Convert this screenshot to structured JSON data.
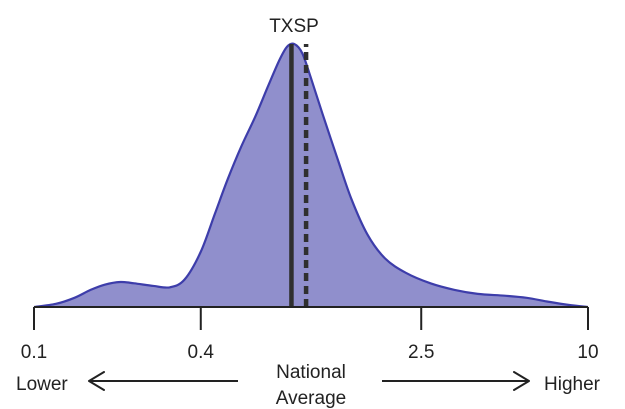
{
  "chart_data": {
    "type": "area",
    "title": "",
    "marker_label": "TXSP",
    "x_scale": "log",
    "xlim": [
      0.1,
      10
    ],
    "ticks": [
      0.1,
      0.4,
      2.5,
      10
    ],
    "tick_labels": [
      "0.1",
      "0.4",
      "2.5",
      "10"
    ],
    "y_scale": "relative density",
    "ylim": [
      0,
      1
    ],
    "density": [
      {
        "x": 0.1,
        "y": 0.0
      },
      {
        "x": 0.12,
        "y": 0.012
      },
      {
        "x": 0.14,
        "y": 0.035
      },
      {
        "x": 0.16,
        "y": 0.065
      },
      {
        "x": 0.18,
        "y": 0.085
      },
      {
        "x": 0.205,
        "y": 0.095
      },
      {
        "x": 0.23,
        "y": 0.09
      },
      {
        "x": 0.27,
        "y": 0.08
      },
      {
        "x": 0.31,
        "y": 0.075
      },
      {
        "x": 0.35,
        "y": 0.105
      },
      {
        "x": 0.4,
        "y": 0.21
      },
      {
        "x": 0.45,
        "y": 0.355
      },
      {
        "x": 0.5,
        "y": 0.485
      },
      {
        "x": 0.56,
        "y": 0.61
      },
      {
        "x": 0.63,
        "y": 0.725
      },
      {
        "x": 0.7,
        "y": 0.84
      },
      {
        "x": 0.77,
        "y": 0.94
      },
      {
        "x": 0.82,
        "y": 0.99
      },
      {
        "x": 0.87,
        "y": 1.0
      },
      {
        "x": 0.93,
        "y": 0.965
      },
      {
        "x": 1.0,
        "y": 0.87
      },
      {
        "x": 1.1,
        "y": 0.735
      },
      {
        "x": 1.25,
        "y": 0.56
      },
      {
        "x": 1.4,
        "y": 0.41
      },
      {
        "x": 1.6,
        "y": 0.275
      },
      {
        "x": 1.85,
        "y": 0.185
      },
      {
        "x": 2.2,
        "y": 0.13
      },
      {
        "x": 2.7,
        "y": 0.09
      },
      {
        "x": 3.3,
        "y": 0.065
      },
      {
        "x": 4.0,
        "y": 0.05
      },
      {
        "x": 5.0,
        "y": 0.043
      },
      {
        "x": 6.0,
        "y": 0.035
      },
      {
        "x": 7.2,
        "y": 0.02
      },
      {
        "x": 8.5,
        "y": 0.008
      },
      {
        "x": 10.0,
        "y": 0.0
      }
    ],
    "reference_lines": [
      {
        "x": 0.85,
        "style": "solid"
      },
      {
        "x": 0.96,
        "style": "dashed"
      }
    ],
    "lower_label": "Lower",
    "higher_label": "Higher",
    "center_label_line1": "National",
    "center_label_line2": "Average",
    "fill_color": "#908fcc",
    "stroke_color": "#3d3daa",
    "reference_line_color": "#2f2f2f",
    "axis_color": "#222222"
  }
}
